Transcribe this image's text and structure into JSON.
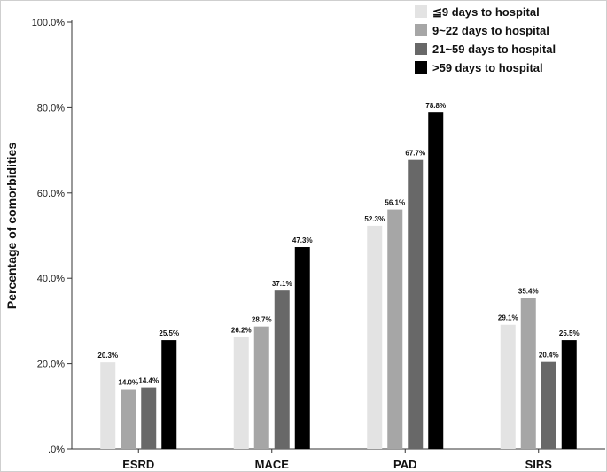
{
  "chart_data": {
    "type": "bar",
    "title": "",
    "xlabel": "",
    "ylabel": "Percentage of comorbidities",
    "categories": [
      "ESRD",
      "MACE",
      "PAD",
      "SIRS"
    ],
    "series": [
      {
        "name": "≦9 days to hospital",
        "color": "#e3e3e3",
        "values": [
          20.3,
          26.2,
          52.3,
          29.1
        ]
      },
      {
        "name": "9~22 days to hospital",
        "color": "#a6a6a6",
        "values": [
          14.0,
          28.7,
          56.1,
          35.4
        ]
      },
      {
        "name": "21~59 days to hospital",
        "color": "#686868",
        "values": [
          14.4,
          37.1,
          67.7,
          20.4
        ]
      },
      {
        "name": ">59 days to hospital",
        "color": "#000000",
        "values": [
          25.5,
          47.3,
          78.8,
          25.5
        ]
      }
    ],
    "value_labels": [
      [
        "20.3%",
        "26.2%",
        "52.3%",
        "29.1%"
      ],
      [
        "14.0%",
        "28.7%",
        "56.1%",
        "35.4%"
      ],
      [
        "14.4%",
        "37.1%",
        "67.7%",
        "20.4%"
      ],
      [
        "25.5%",
        "47.3%",
        "78.8%",
        "25.5%"
      ]
    ],
    "ylim": [
      0,
      100
    ],
    "yticks": [
      0,
      20,
      40,
      60,
      80,
      100
    ],
    "ytick_labels": [
      ".0%",
      "20.0%",
      "40.0%",
      "60.0%",
      "80.0%",
      "100.0%"
    ],
    "grid": false,
    "legend_position": "top-right"
  }
}
